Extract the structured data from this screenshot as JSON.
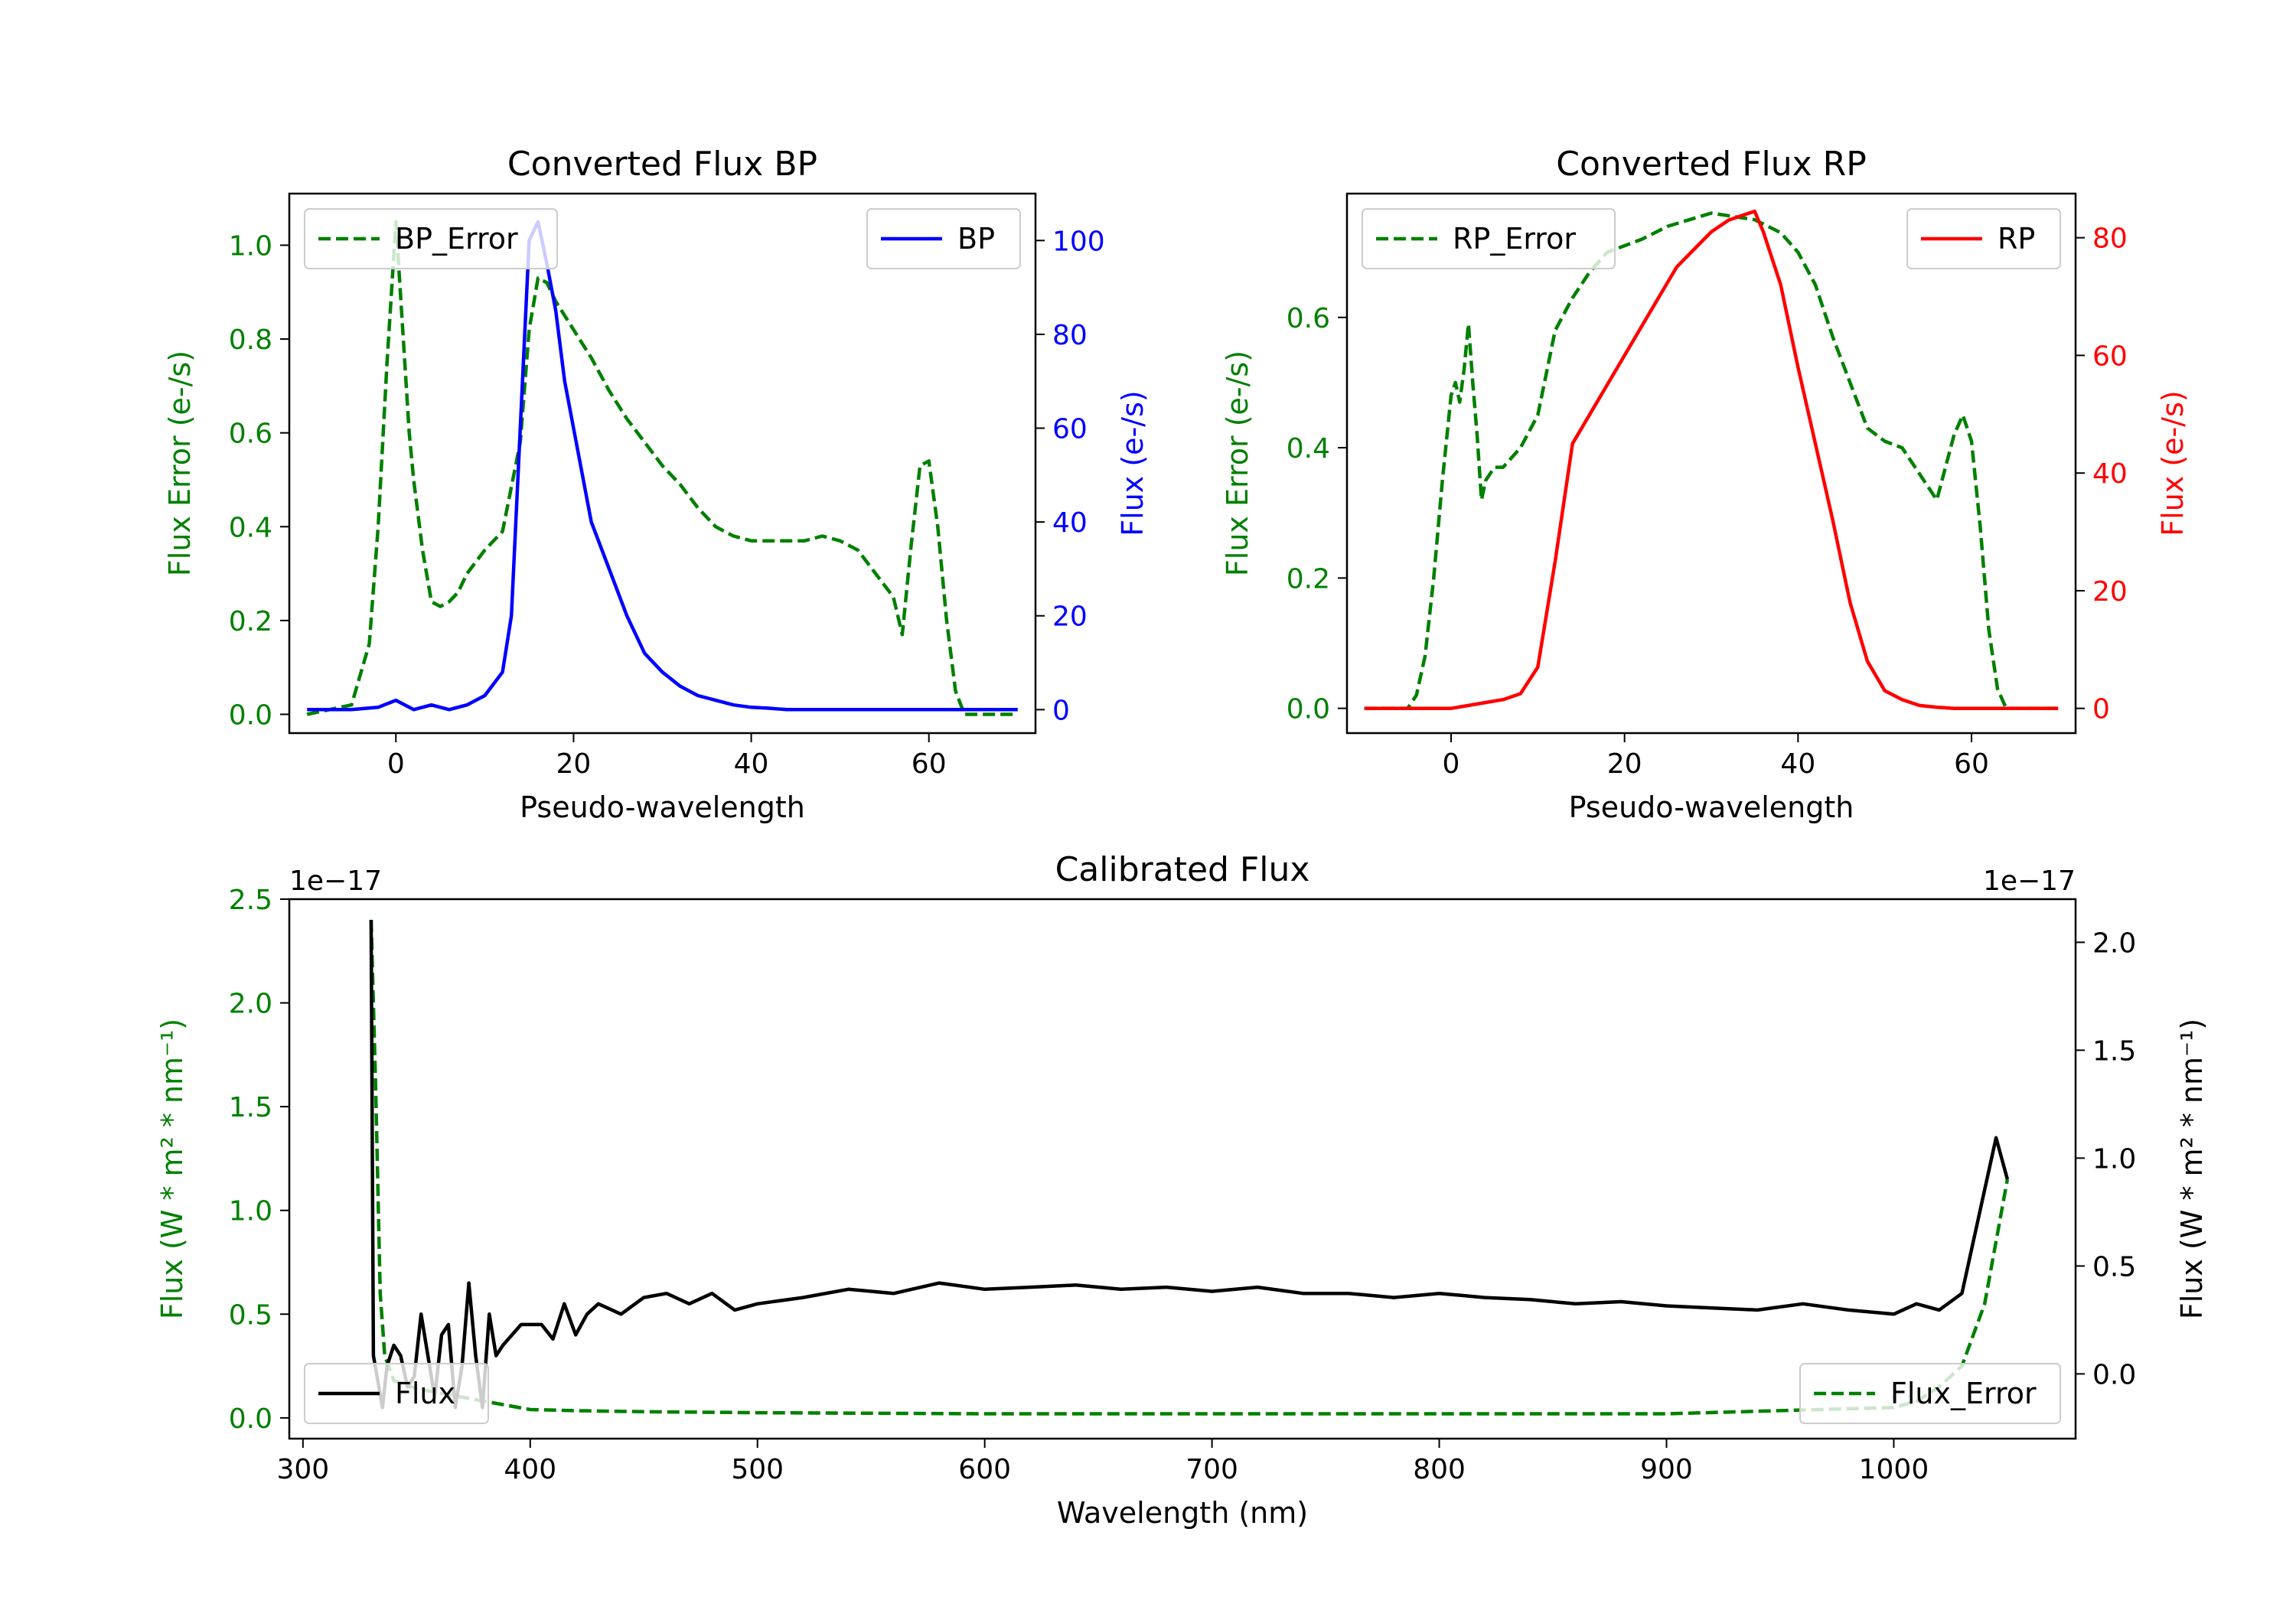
{
  "chart_data": [
    {
      "id": "bp",
      "type": "line",
      "title": "Converted Flux BP",
      "xlabel": "Pseudo-wavelength",
      "y_left_label": "Flux Error (e-/s)",
      "y_right_label": "Flux (e-/s)",
      "xlim": [
        -12,
        72
      ],
      "xticks": [
        "0",
        "20",
        "40",
        "60"
      ],
      "y_left_lim": [
        -0.04,
        1.11
      ],
      "y_left_ticks": [
        "0.0",
        "0.2",
        "0.4",
        "0.6",
        "0.8",
        "1.0"
      ],
      "y_right_lim": [
        -5,
        110
      ],
      "y_right_ticks": [
        "0",
        "20",
        "40",
        "60",
        "80",
        "100"
      ],
      "left_color": "#008000",
      "right_color": "#0000ff",
      "legend_left": "BP_Error",
      "legend_right": "BP",
      "series": [
        {
          "name": "BP_Error",
          "axis": "left",
          "style": "dashed",
          "color": "#008000",
          "x": [
            -10,
            -5,
            -3,
            -2,
            -1,
            0,
            0.5,
            1,
            1.5,
            2,
            3,
            4,
            5,
            6,
            7,
            8,
            10,
            12,
            14,
            15,
            16,
            17,
            18,
            19,
            20,
            22,
            24,
            26,
            28,
            30,
            32,
            34,
            36,
            38,
            40,
            42,
            44,
            46,
            48,
            50,
            52,
            54,
            56,
            57,
            58,
            59,
            60,
            61,
            62,
            63,
            64,
            66,
            68,
            70
          ],
          "y": [
            0.0,
            0.02,
            0.15,
            0.4,
            0.75,
            1.05,
            0.9,
            0.75,
            0.6,
            0.5,
            0.35,
            0.24,
            0.23,
            0.24,
            0.26,
            0.3,
            0.35,
            0.39,
            0.58,
            0.82,
            0.93,
            0.92,
            0.88,
            0.85,
            0.82,
            0.76,
            0.69,
            0.63,
            0.58,
            0.53,
            0.49,
            0.44,
            0.4,
            0.38,
            0.37,
            0.37,
            0.37,
            0.37,
            0.38,
            0.37,
            0.35,
            0.3,
            0.25,
            0.17,
            0.36,
            0.53,
            0.54,
            0.4,
            0.2,
            0.05,
            0.0,
            0.0,
            0.0,
            0.0
          ]
        },
        {
          "name": "BP",
          "axis": "right",
          "style": "solid",
          "color": "#0000ff",
          "x": [
            -10,
            -5,
            -2,
            0,
            2,
            4,
            6,
            8,
            10,
            12,
            13,
            14,
            15,
            16,
            17,
            18,
            19,
            20,
            22,
            24,
            26,
            28,
            30,
            32,
            34,
            36,
            38,
            40,
            42,
            44,
            46,
            48,
            50,
            55,
            60,
            65,
            70
          ],
          "y": [
            0,
            0,
            0.5,
            2,
            0,
            1,
            0,
            1,
            3,
            8,
            20,
            60,
            100,
            104,
            95,
            85,
            70,
            60,
            40,
            30,
            20,
            12,
            8,
            5,
            3,
            2,
            1,
            0.5,
            0.3,
            0,
            0,
            0,
            0,
            0,
            0,
            0,
            0
          ]
        }
      ]
    },
    {
      "id": "rp",
      "type": "line",
      "title": "Converted Flux RP",
      "xlabel": "Pseudo-wavelength",
      "y_left_label": "Flux Error (e-/s)",
      "y_right_label": "Flux (e-/s)",
      "xlim": [
        -12,
        72
      ],
      "xticks": [
        "0",
        "20",
        "40",
        "60"
      ],
      "y_left_lim": [
        -0.038,
        0.79
      ],
      "y_left_ticks": [
        "0.0",
        "0.2",
        "0.4",
        "0.6"
      ],
      "y_right_lim": [
        -4.2,
        87.5
      ],
      "y_right_ticks": [
        "0",
        "20",
        "40",
        "60",
        "80"
      ],
      "left_color": "#008000",
      "right_color": "#ff0000",
      "legend_left": "RP_Error",
      "legend_right": "RP",
      "series": [
        {
          "name": "RP_Error",
          "axis": "left",
          "style": "dashed",
          "color": "#008000",
          "x": [
            -10,
            -5,
            -4,
            -3,
            -2,
            -1,
            0,
            0.5,
            1,
            1.5,
            2,
            2.5,
            3,
            3.5,
            4,
            5,
            6,
            8,
            10,
            12,
            14,
            16,
            18,
            20,
            22,
            25,
            30,
            35,
            38,
            40,
            42,
            44,
            46,
            48,
            50,
            52,
            54,
            55,
            56,
            57,
            58,
            59,
            60,
            61,
            62,
            63,
            64,
            66,
            70
          ],
          "y": [
            0,
            0,
            0.02,
            0.08,
            0.2,
            0.35,
            0.48,
            0.5,
            0.47,
            0.52,
            0.59,
            0.5,
            0.42,
            0.32,
            0.35,
            0.37,
            0.37,
            0.4,
            0.45,
            0.58,
            0.63,
            0.67,
            0.7,
            0.71,
            0.72,
            0.74,
            0.76,
            0.75,
            0.73,
            0.7,
            0.65,
            0.57,
            0.5,
            0.43,
            0.41,
            0.4,
            0.36,
            0.34,
            0.32,
            0.37,
            0.42,
            0.45,
            0.41,
            0.28,
            0.12,
            0.03,
            0.0,
            0.0,
            0.0
          ]
        },
        {
          "name": "RP",
          "axis": "right",
          "style": "solid",
          "color": "#ff0000",
          "x": [
            -10,
            0,
            2,
            4,
            6,
            8,
            10,
            12,
            14,
            16,
            18,
            20,
            22,
            24,
            26,
            28,
            30,
            32,
            34,
            35,
            36,
            38,
            40,
            42,
            44,
            46,
            48,
            50,
            52,
            54,
            56,
            58,
            60,
            65,
            70
          ],
          "y": [
            0,
            0,
            0.5,
            1,
            1.5,
            2.5,
            7,
            25,
            45,
            50,
            55,
            60,
            65,
            70,
            75,
            78,
            81,
            83,
            84,
            84.5,
            81,
            72,
            58,
            45,
            32,
            18,
            8,
            3,
            1.5,
            0.5,
            0.2,
            0,
            0,
            0,
            0
          ]
        }
      ]
    },
    {
      "id": "cal",
      "type": "line",
      "title": "Calibrated Flux",
      "xlabel": "Wavelength (nm)",
      "y_left_label": "Flux (W * m² * nm⁻¹)",
      "y_right_label": "Flux (W * m² * nm⁻¹)",
      "offset_left": "1e−17",
      "offset_right": "1e−17",
      "xlim": [
        294,
        1080
      ],
      "xticks": [
        "300",
        "400",
        "500",
        "600",
        "700",
        "800",
        "900",
        "1000"
      ],
      "y_left_lim": [
        -0.1,
        2.5
      ],
      "y_left_ticks": [
        "0.0",
        "0.5",
        "1.0",
        "1.5",
        "2.0",
        "2.5"
      ],
      "y_right_lim": [
        -0.3,
        2.2
      ],
      "y_right_ticks": [
        "0.0",
        "0.5",
        "1.0",
        "1.5",
        "2.0"
      ],
      "left_color": "#008000",
      "right_color": "#000000",
      "legend_flux": "Flux",
      "legend_error": "Flux_Error",
      "series": [
        {
          "name": "Flux_Error",
          "axis": "left",
          "style": "dashed",
          "color": "#008000",
          "x": [
            330,
            332,
            334,
            336,
            340,
            350,
            360,
            370,
            380,
            390,
            400,
            420,
            450,
            500,
            600,
            700,
            800,
            900,
            1000,
            1010,
            1020,
            1030,
            1040,
            1050
          ],
          "y": [
            2.4,
            1.6,
            0.6,
            0.3,
            0.18,
            0.14,
            0.12,
            0.1,
            0.08,
            0.06,
            0.04,
            0.035,
            0.03,
            0.025,
            0.02,
            0.02,
            0.02,
            0.02,
            0.05,
            0.08,
            0.15,
            0.25,
            0.55,
            1.15
          ]
        },
        {
          "name": "Flux",
          "axis": "left",
          "style": "solid",
          "color": "#000000",
          "x": [
            330,
            331,
            335,
            337,
            340,
            343,
            346,
            349,
            352,
            355,
            358,
            361,
            364,
            367,
            370,
            373,
            376,
            379,
            382,
            385,
            388,
            392,
            396,
            400,
            405,
            410,
            415,
            420,
            425,
            430,
            440,
            450,
            460,
            470,
            480,
            490,
            500,
            520,
            540,
            560,
            580,
            600,
            620,
            640,
            660,
            680,
            700,
            720,
            740,
            760,
            780,
            800,
            820,
            840,
            860,
            880,
            900,
            920,
            940,
            960,
            980,
            1000,
            1010,
            1020,
            1030,
            1040,
            1045,
            1050
          ],
          "y": [
            2.4,
            0.3,
            0.05,
            0.25,
            0.35,
            0.3,
            0.15,
            0.2,
            0.5,
            0.3,
            0.1,
            0.4,
            0.45,
            0.05,
            0.25,
            0.65,
            0.3,
            0.05,
            0.5,
            0.3,
            0.35,
            0.4,
            0.45,
            0.45,
            0.45,
            0.38,
            0.55,
            0.4,
            0.5,
            0.55,
            0.5,
            0.58,
            0.6,
            0.55,
            0.6,
            0.52,
            0.55,
            0.58,
            0.62,
            0.6,
            0.65,
            0.62,
            0.63,
            0.64,
            0.62,
            0.63,
            0.61,
            0.63,
            0.6,
            0.6,
            0.58,
            0.6,
            0.58,
            0.57,
            0.55,
            0.56,
            0.54,
            0.53,
            0.52,
            0.55,
            0.52,
            0.5,
            0.55,
            0.52,
            0.6,
            1.1,
            1.35,
            1.15
          ]
        }
      ]
    }
  ]
}
